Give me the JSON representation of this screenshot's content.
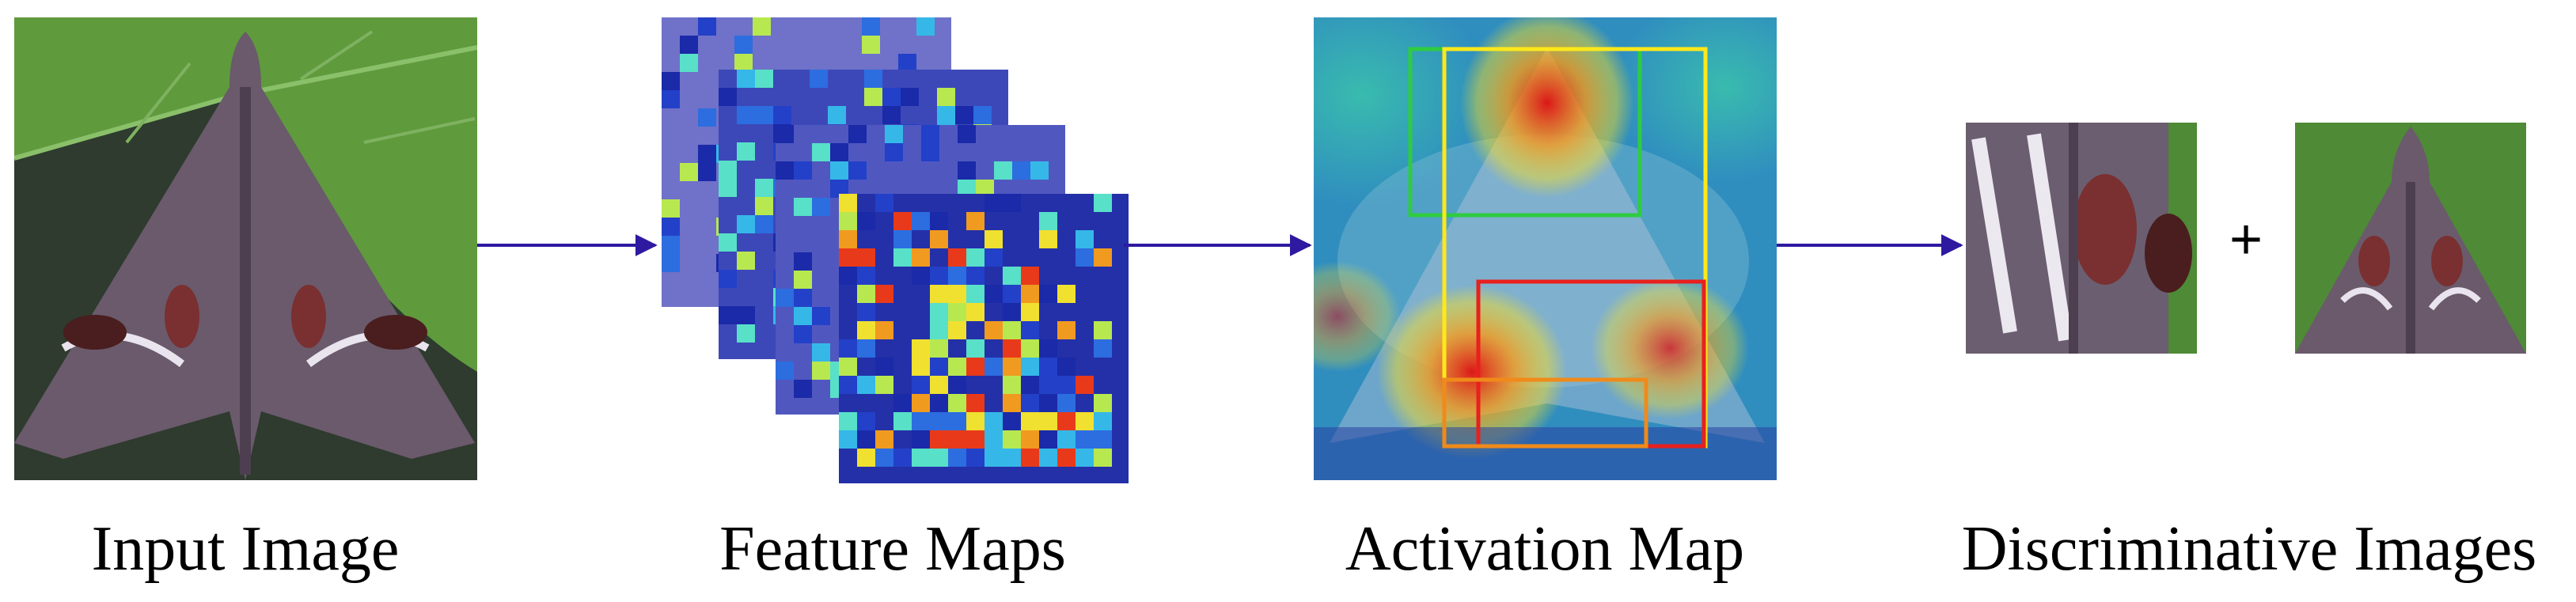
{
  "stages": [
    {
      "id": "input",
      "caption": "Input Image"
    },
    {
      "id": "features",
      "caption": "Feature Maps"
    },
    {
      "id": "activation",
      "caption": "Activation Map"
    },
    {
      "id": "discriminative",
      "caption": "Discriminative Images"
    }
  ],
  "operator": "+",
  "colors": {
    "arrow": "#2d1aa0",
    "leaf": "#5f9a3c",
    "moth": "#6a5a6c",
    "box_green": "#2ecc40",
    "box_yellow": "#ffe81a",
    "box_red": "#e8201e",
    "box_orange": "#f08a1a"
  }
}
